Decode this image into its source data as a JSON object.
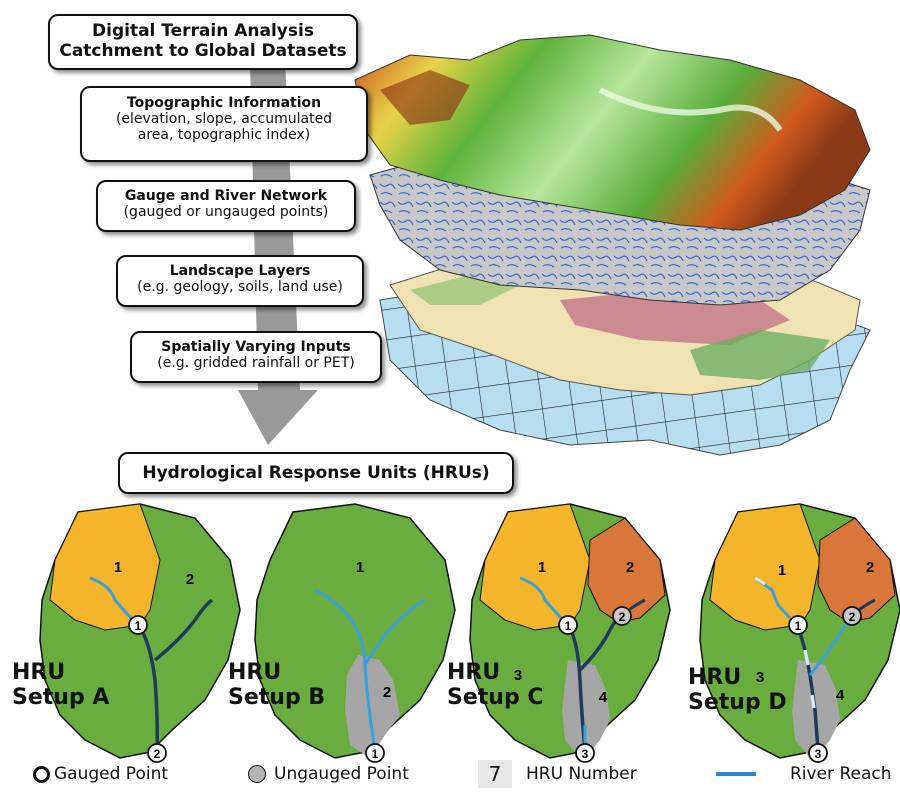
{
  "header": {
    "line1": "Digital Terrain Analysis",
    "line2": "Catchment to Global Datasets"
  },
  "layers": [
    {
      "title": "Topographic  Information",
      "desc1": "(elevation, slope, accumulated",
      "desc2": "area, topographic index)"
    },
    {
      "title": "Gauge and River Network",
      "desc1": "(gauged or ungauged points)"
    },
    {
      "title": "Landscape Layers",
      "desc1": "(e.g. geology, soils, land use)"
    },
    {
      "title": "Spatially Varying Inputs",
      "desc1": "(e.g. gridded rainfall or PET)"
    }
  ],
  "hru_title": "Hydrological Response Units (HRUs)",
  "setups": [
    {
      "line1": "HRU",
      "line2": "Setup A",
      "hrus": [
        "1",
        "2"
      ],
      "points": [
        "1",
        "2"
      ]
    },
    {
      "line1": "HRU",
      "line2": "Setup B",
      "hrus": [
        "1",
        "2"
      ],
      "points": [
        "1"
      ]
    },
    {
      "line1": "HRU",
      "line2": "Setup C",
      "hrus": [
        "1",
        "2",
        "3",
        "4"
      ],
      "points": [
        "1",
        "2",
        "3"
      ]
    },
    {
      "line1": "HRU",
      "line2": "Setup D",
      "hrus": [
        "1",
        "2",
        "3",
        "4"
      ],
      "points": [
        "1",
        "2",
        "3"
      ]
    }
  ],
  "legend": {
    "gauged": "Gauged Point",
    "ungauged": "Ungauged Point",
    "hru_number_sample": "7",
    "hru_number": "HRU Number",
    "river": "River Reach"
  },
  "colors": {
    "hru_green": "#6aad3e",
    "hru_yellow": "#f5b52a",
    "hru_orange": "#d9763a",
    "ungauged_grey": "#a6a6a6",
    "river_light": "#3aa0d8",
    "river_dark": "#1f3a5c",
    "grid_blue": "#b5dcec"
  }
}
